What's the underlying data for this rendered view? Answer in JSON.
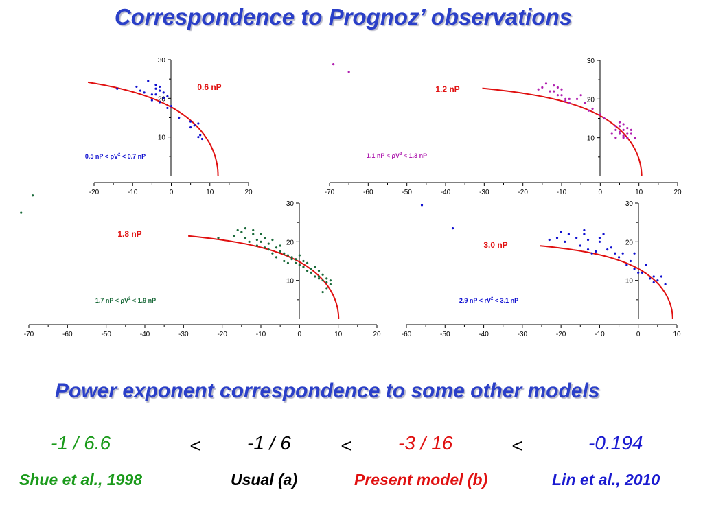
{
  "slide": {
    "title": "Correspondence to Prognoz’ observations",
    "subtitle": "Power exponent correspondence to some other models",
    "exponents": [
      {
        "value": "-1 / 6.6",
        "color": "#1a9a1a"
      },
      {
        "value": "-1 / 6",
        "color": "#000000"
      },
      {
        "value": "-3 / 16",
        "color": "#e01010"
      },
      {
        "value": "-0.194",
        "color": "#1a1ad0"
      }
    ],
    "less_than": "<",
    "references": [
      {
        "label": "Shue et al., 1998",
        "color": "#1a9a1a"
      },
      {
        "label": "Usual  (a)",
        "color": "#000000"
      },
      {
        "label": "Present model  (b)",
        "color": "#e01010"
      },
      {
        "label": "Lin et al., 2010",
        "color": "#1a1ad0"
      }
    ]
  },
  "chart_data": [
    {
      "type": "scatter",
      "pressure_label": "0.6 nP",
      "range_label": {
        "pre": "0.5 nP < ",
        "sym": "ρ",
        "mid": "V",
        "sup": "2",
        "post": " < 0.7 nP"
      },
      "point_color": "#1010d0",
      "x_ticks": [
        "-20",
        "-10",
        "0",
        "10",
        "20"
      ],
      "y_ticks": [
        "10",
        "20",
        "30"
      ],
      "xlim": [
        -20,
        20
      ],
      "ylim": [
        0,
        30
      ],
      "curve": {
        "x0": 12.1,
        "r0": 12.1,
        "alpha": 0.55,
        "color": "#e01010"
      },
      "points": [
        [
          -14,
          22.5
        ],
        [
          -9,
          23
        ],
        [
          -8,
          22
        ],
        [
          -7,
          21.5
        ],
        [
          -6,
          24.5
        ],
        [
          -5,
          21
        ],
        [
          -4,
          23.5
        ],
        [
          -4,
          22.5
        ],
        [
          -3,
          23
        ],
        [
          -3,
          22
        ],
        [
          -4,
          21
        ],
        [
          -2,
          20
        ],
        [
          -3,
          19
        ],
        [
          -5,
          19.5
        ],
        [
          -1,
          17.5
        ],
        [
          0,
          18
        ],
        [
          2,
          15
        ],
        [
          5,
          14
        ],
        [
          6,
          13
        ],
        [
          7,
          13.5
        ],
        [
          5,
          12.5
        ],
        [
          7,
          10
        ],
        [
          8,
          9.5
        ],
        [
          7.5,
          10.5
        ],
        [
          -1,
          20.5
        ],
        [
          -2,
          21.5
        ]
      ]
    },
    {
      "type": "scatter",
      "pressure_label": "1.2 nP",
      "range_label": {
        "pre": "1.1 nP < ",
        "sym": "ρ",
        "mid": "V",
        "sup": "2",
        "post": " < 1.3 nP"
      },
      "point_color": "#b020b0",
      "x_ticks": [
        "-70",
        "-60",
        "-50",
        "-40",
        "-30",
        "-20",
        "-10",
        "0",
        "10",
        "20"
      ],
      "y_ticks": [
        "10",
        "20",
        "30"
      ],
      "xlim": [
        -70,
        20
      ],
      "ylim": [
        0,
        30
      ],
      "curve": {
        "x0": 10.7,
        "r0": 10.7,
        "alpha": 0.55,
        "color": "#e01010"
      },
      "points": [
        [
          -69,
          29
        ],
        [
          -65,
          27
        ],
        [
          -16,
          22.5
        ],
        [
          -15,
          23
        ],
        [
          -14,
          24
        ],
        [
          -13,
          22
        ],
        [
          -12,
          23.5
        ],
        [
          -12,
          22
        ],
        [
          -11,
          21
        ],
        [
          -10,
          22.5
        ],
        [
          -10,
          21
        ],
        [
          -9,
          20
        ],
        [
          -9,
          19.5
        ],
        [
          -8,
          20
        ],
        [
          -11,
          23
        ],
        [
          -8,
          19
        ],
        [
          -6,
          20
        ],
        [
          -5,
          21
        ],
        [
          -4,
          19
        ],
        [
          -3,
          17
        ],
        [
          -2,
          17.5
        ],
        [
          0,
          16
        ],
        [
          1,
          15
        ],
        [
          4,
          13
        ],
        [
          4,
          12
        ],
        [
          5,
          11
        ],
        [
          5,
          13
        ],
        [
          6,
          12
        ],
        [
          6,
          10.5
        ],
        [
          7,
          11
        ],
        [
          7,
          12.5
        ],
        [
          8,
          12
        ],
        [
          8,
          11
        ],
        [
          6,
          10
        ],
        [
          5,
          11.5
        ],
        [
          7,
          10
        ],
        [
          3,
          11
        ],
        [
          4,
          10
        ],
        [
          9,
          10
        ],
        [
          5,
          14
        ],
        [
          6,
          13.5
        ]
      ]
    },
    {
      "type": "scatter",
      "pressure_label": "1.8 nP",
      "range_label": {
        "pre": "1.7 nP < ",
        "sym": "ρ",
        "mid": "V",
        "sup": "2",
        "post": " < 1.9 nP"
      },
      "point_color": "#1a6a3a",
      "x_ticks": [
        "-70",
        "-60",
        "-50",
        "-40",
        "-30",
        "-20",
        "-10",
        "0",
        "10",
        "20"
      ],
      "y_ticks": [
        "10",
        "20",
        "30"
      ],
      "xlim": [
        -70,
        20
      ],
      "ylim": [
        0,
        30
      ],
      "curve": {
        "x0": 10.1,
        "r0": 10.1,
        "alpha": 0.55,
        "color": "#e01010"
      },
      "points": [
        [
          -72,
          27.5
        ],
        [
          -69,
          32
        ],
        [
          -21,
          21
        ],
        [
          -17,
          21.5
        ],
        [
          -16,
          23
        ],
        [
          -15,
          22.5
        ],
        [
          -14,
          23.5
        ],
        [
          -14,
          21
        ],
        [
          -13,
          20
        ],
        [
          -12,
          22
        ],
        [
          -12,
          23
        ],
        [
          -11,
          20.5
        ],
        [
          -11,
          19
        ],
        [
          -10,
          22
        ],
        [
          -10,
          20
        ],
        [
          -9,
          18.5
        ],
        [
          -9,
          21
        ],
        [
          -8,
          19.5
        ],
        [
          -8,
          18
        ],
        [
          -7,
          20.5
        ],
        [
          -7,
          17
        ],
        [
          -6,
          18.5
        ],
        [
          -6,
          16
        ],
        [
          -5,
          19
        ],
        [
          -5,
          17.5
        ],
        [
          -4,
          15
        ],
        [
          -4,
          17
        ],
        [
          -3,
          16.5
        ],
        [
          -3,
          14.5
        ],
        [
          -2,
          16
        ],
        [
          -2,
          15.5
        ],
        [
          -1,
          14.5
        ],
        [
          -1,
          15.5
        ],
        [
          0,
          16.5
        ],
        [
          0,
          14
        ],
        [
          1,
          15
        ],
        [
          1,
          13.5
        ],
        [
          2,
          14.5
        ],
        [
          2,
          12.5
        ],
        [
          3,
          13
        ],
        [
          3,
          12
        ],
        [
          4,
          13.5
        ],
        [
          4,
          11
        ],
        [
          5,
          12.5
        ],
        [
          5,
          10.5
        ],
        [
          6,
          11.5
        ],
        [
          6,
          10
        ],
        [
          7,
          10.5
        ],
        [
          7,
          9.5
        ],
        [
          8,
          9
        ],
        [
          8,
          10
        ],
        [
          7,
          8
        ],
        [
          6,
          7
        ],
        [
          5,
          11
        ]
      ]
    },
    {
      "type": "scatter",
      "pressure_label": "3.0 nP",
      "range_label": {
        "pre": "2.9 nP < ",
        "sym": "r",
        "mid": "V",
        "sup": "2",
        "post": " < 3.1 nP"
      },
      "point_color": "#1010d0",
      "x_ticks": [
        "-60",
        "-50",
        "-40",
        "-30",
        "-20",
        "-10",
        "0",
        "10"
      ],
      "y_ticks": [
        "10",
        "20",
        "30"
      ],
      "xlim": [
        -60,
        10
      ],
      "ylim": [
        0,
        30
      ],
      "curve": {
        "x0": 8.9,
        "r0": 8.9,
        "alpha": 0.55,
        "color": "#e01010"
      },
      "points": [
        [
          -56,
          29.5
        ],
        [
          -48,
          23.5
        ],
        [
          -23,
          20.5
        ],
        [
          -21,
          21
        ],
        [
          -20,
          22.5
        ],
        [
          -19,
          20
        ],
        [
          -18,
          22
        ],
        [
          -16,
          21
        ],
        [
          -15,
          19
        ],
        [
          -14,
          23
        ],
        [
          -14,
          22
        ],
        [
          -13,
          20.5
        ],
        [
          -12,
          17
        ],
        [
          -13,
          18
        ],
        [
          -11,
          17.5
        ],
        [
          -10,
          21
        ],
        [
          -8,
          18
        ],
        [
          -7,
          18.5
        ],
        [
          -6,
          17
        ],
        [
          -5,
          16
        ],
        [
          -4,
          17
        ],
        [
          -3,
          14
        ],
        [
          -2,
          15
        ],
        [
          -1,
          17
        ],
        [
          -1,
          13
        ],
        [
          0,
          12
        ],
        [
          1,
          12
        ],
        [
          2,
          14
        ],
        [
          3,
          10.5
        ],
        [
          4,
          11
        ],
        [
          4,
          9.5
        ],
        [
          5,
          10
        ],
        [
          6,
          11
        ],
        [
          7,
          9
        ],
        [
          -10,
          20
        ],
        [
          -9,
          22
        ]
      ]
    }
  ]
}
